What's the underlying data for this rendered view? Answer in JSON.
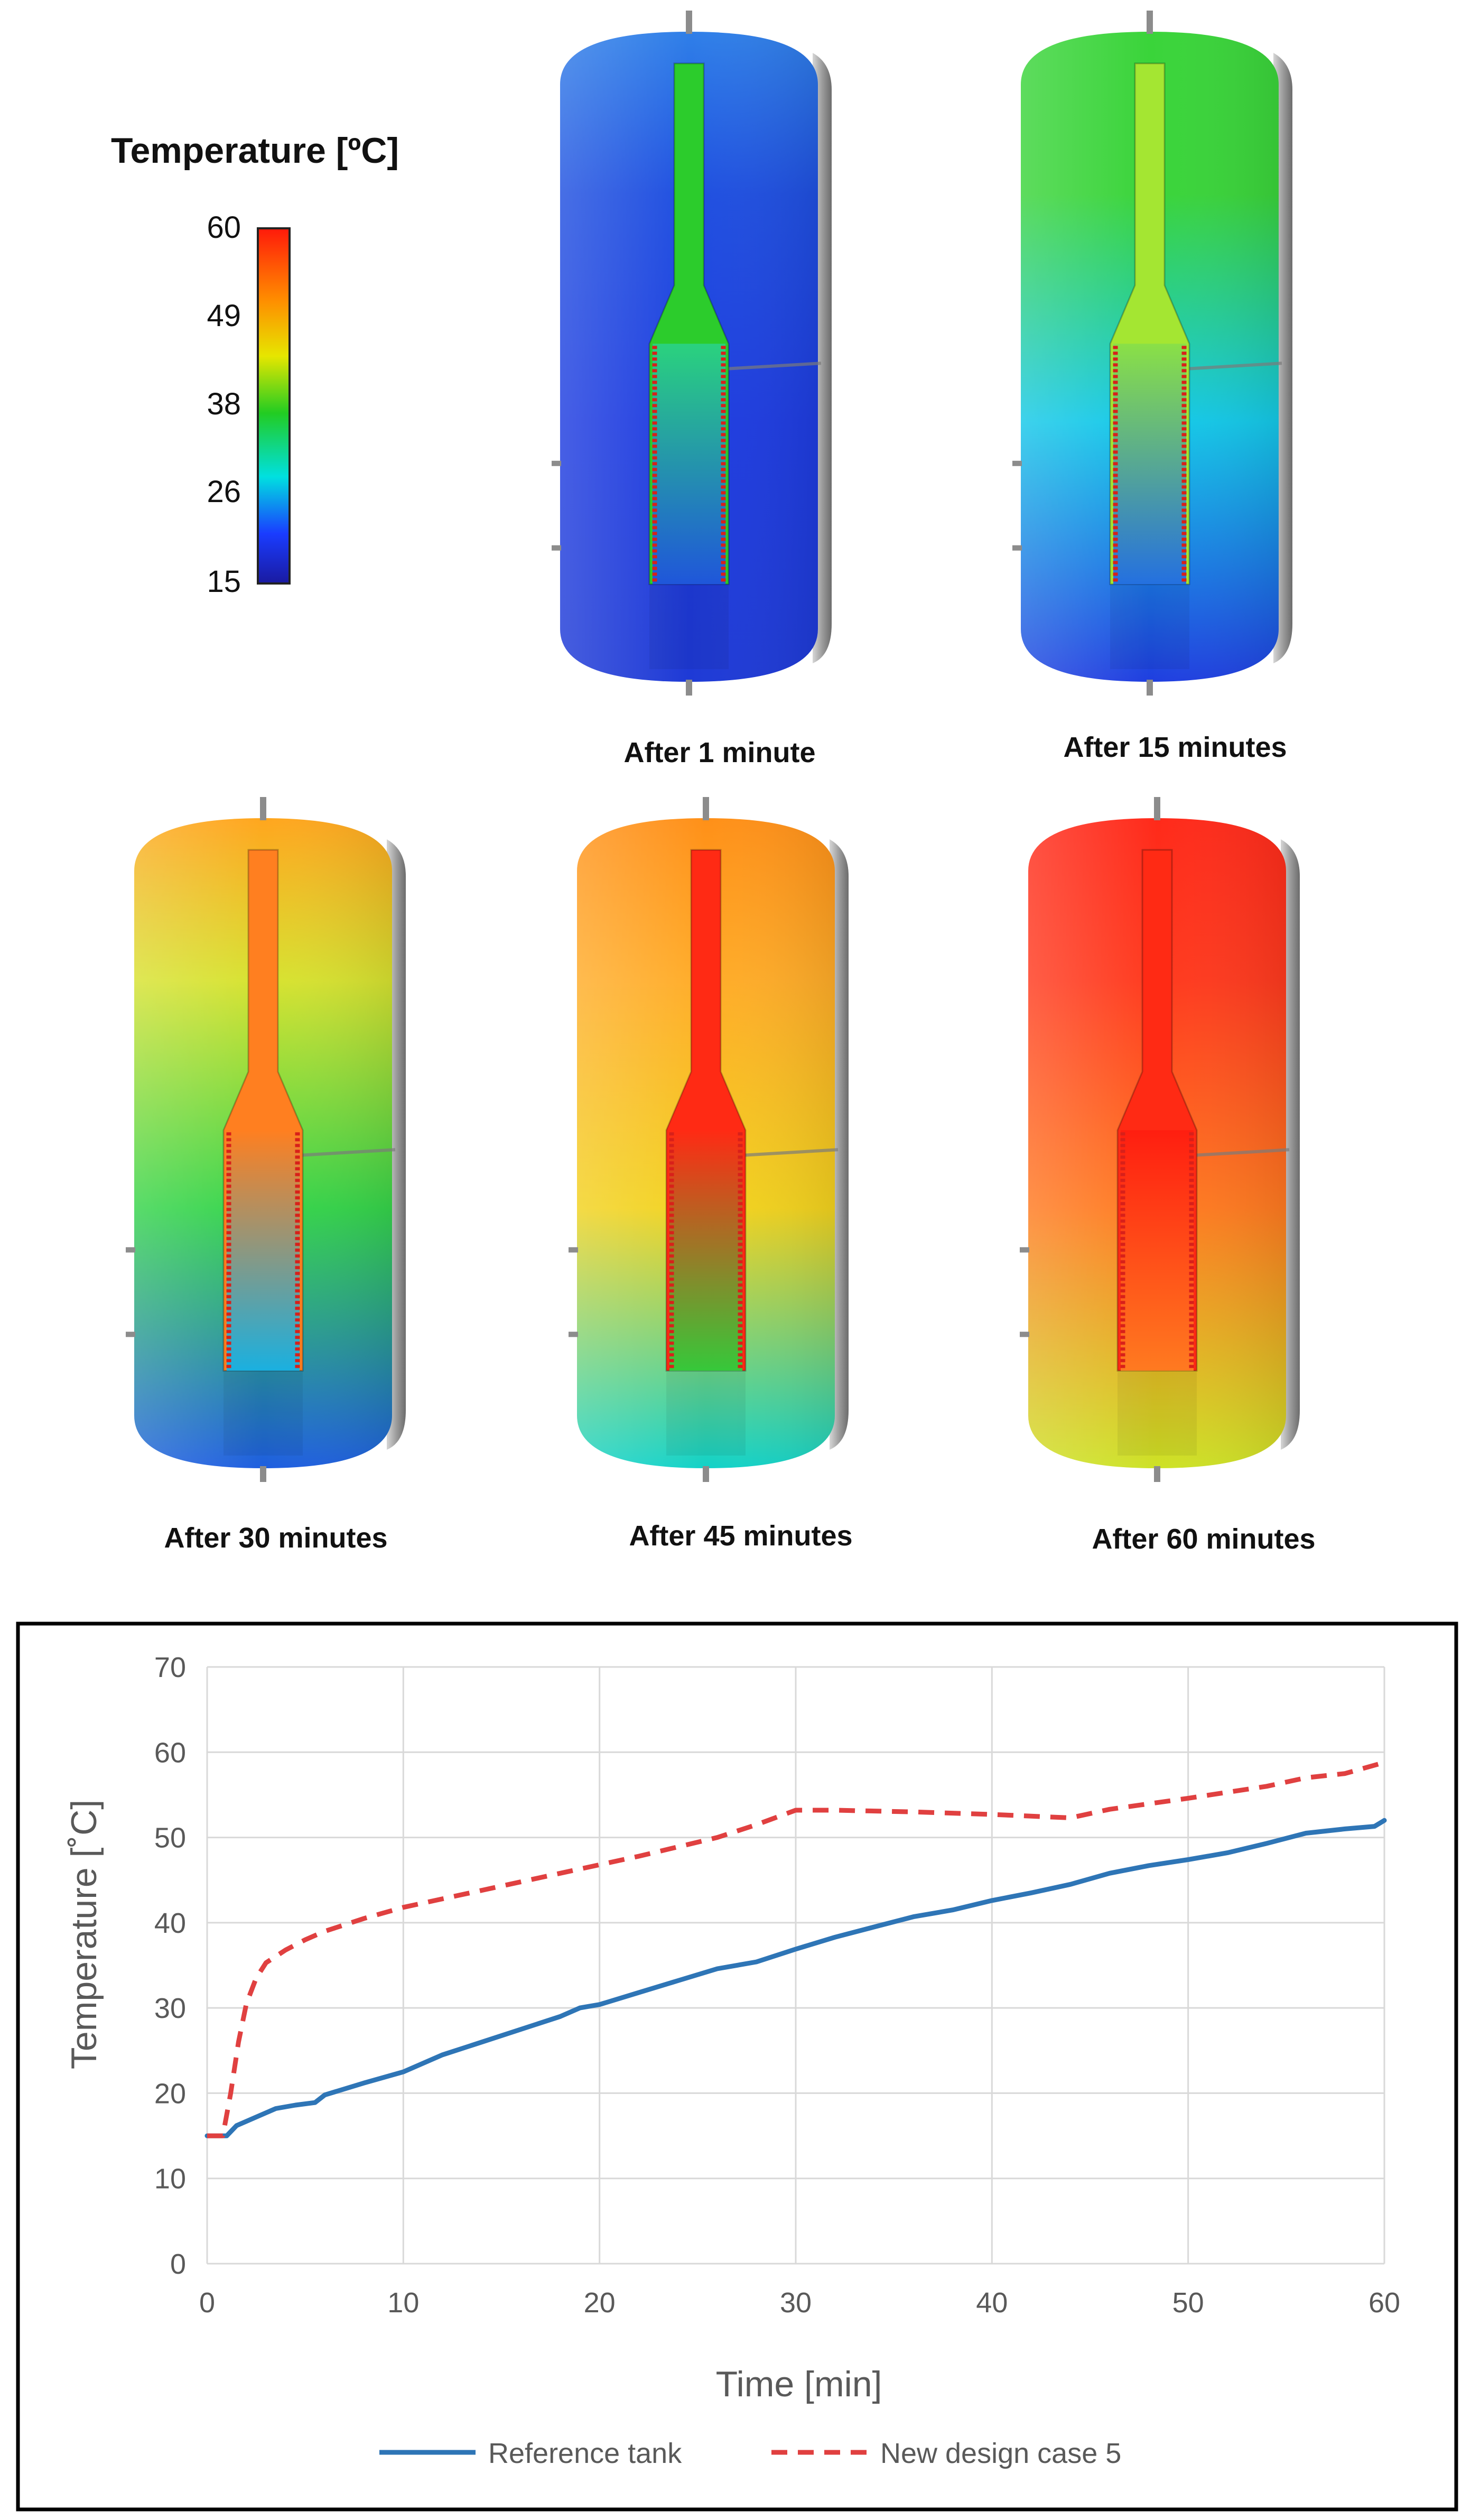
{
  "legend": {
    "title": "Temperature [ºC]",
    "ticks": [
      "60",
      "49",
      "38",
      "26",
      "15"
    ],
    "gradient_colors": [
      "#ff1a0a",
      "#ff8c00",
      "#e6e600",
      "#22cc22",
      "#00e0e0",
      "#1a3cff",
      "#1a1aa0"
    ]
  },
  "tanks": [
    {
      "label": "After 1 minute",
      "top": "#2f7fe8",
      "upper": "#1f4fe0",
      "mid": "#1e3ce0",
      "bottom": "#1e3ad6",
      "shaft": "#2ccc2c",
      "coilTop": "#2ad27e",
      "coilBottom": "#1f56da"
    },
    {
      "label": "After 15 minutes",
      "top": "#3ad43a",
      "upper": "#3ad43a",
      "mid": "#14c8e8",
      "bottom": "#1f3ee0",
      "shaft": "#a4e632",
      "coilTop": "#8ae046",
      "coilBottom": "#2470e0"
    },
    {
      "label": "After 30 minutes",
      "top": "#ffa61e",
      "upper": "#d7e230",
      "mid": "#35d44a",
      "bottom": "#1e5ee0",
      "shaft": "#ff7f20",
      "coilTop": "#ff7f20",
      "coilBottom": "#1ab0e0"
    },
    {
      "label": "After 45 minutes",
      "top": "#ff9018",
      "upper": "#ffac28",
      "mid": "#f2d21e",
      "bottom": "#12d2c8",
      "shaft": "#ff2a14",
      "coilTop": "#ff2a14",
      "coilBottom": "#36c83a"
    },
    {
      "label": "After 60 minutes",
      "top": "#ff2a1a",
      "upper": "#ff3a1e",
      "mid": "#ff7a20",
      "bottom": "#cde226",
      "shaft": "#ff2a14",
      "coilTop": "#ff1e10",
      "coilBottom": "#ff7a20"
    }
  ],
  "chart_data": {
    "type": "line",
    "title": "",
    "xlabel": "Time [min]",
    "ylabel": "Temperature [˚C]",
    "xlim": [
      0,
      60
    ],
    "ylim": [
      0,
      70
    ],
    "x_ticks": [
      "0",
      "10",
      "20",
      "30",
      "40",
      "50",
      "60"
    ],
    "y_ticks": [
      "0",
      "10",
      "20",
      "30",
      "40",
      "50",
      "60",
      "70"
    ],
    "grid": true,
    "legend_position": "bottom",
    "series": [
      {
        "name": "Reference tank",
        "color": "#2e75b6",
        "dash": "solid",
        "points": [
          [
            0,
            15
          ],
          [
            1,
            15
          ],
          [
            1.5,
            16.2
          ],
          [
            2.5,
            17.2
          ],
          [
            3.5,
            18.2
          ],
          [
            4.5,
            18.6
          ],
          [
            5.5,
            18.9
          ],
          [
            6,
            19.8
          ],
          [
            8,
            21.2
          ],
          [
            10,
            22.5
          ],
          [
            12,
            24.5
          ],
          [
            14,
            26
          ],
          [
            16,
            27.5
          ],
          [
            18,
            29
          ],
          [
            19,
            30
          ],
          [
            20,
            30.4
          ],
          [
            22,
            31.8
          ],
          [
            24,
            33.2
          ],
          [
            26,
            34.6
          ],
          [
            28,
            35.4
          ],
          [
            30,
            36.9
          ],
          [
            32,
            38.3
          ],
          [
            34,
            39.5
          ],
          [
            36,
            40.7
          ],
          [
            38,
            41.5
          ],
          [
            40,
            42.6
          ],
          [
            42,
            43.5
          ],
          [
            44,
            44.5
          ],
          [
            46,
            45.8
          ],
          [
            48,
            46.7
          ],
          [
            50,
            47.4
          ],
          [
            52,
            48.2
          ],
          [
            54,
            49.3
          ],
          [
            56,
            50.5
          ],
          [
            58,
            51
          ],
          [
            59.5,
            51.3
          ],
          [
            60,
            52
          ]
        ]
      },
      {
        "name": "New design case 5",
        "color": "#e04040",
        "dash": "dashed",
        "points": [
          [
            0,
            15
          ],
          [
            0.8,
            15
          ],
          [
            1.2,
            20
          ],
          [
            1.6,
            26
          ],
          [
            2,
            30.5
          ],
          [
            2.5,
            33.5
          ],
          [
            3,
            35.3
          ],
          [
            4,
            36.8
          ],
          [
            5,
            38
          ],
          [
            6,
            39
          ],
          [
            8,
            40.5
          ],
          [
            10,
            41.8
          ],
          [
            14,
            43.8
          ],
          [
            18,
            45.8
          ],
          [
            22,
            47.8
          ],
          [
            26,
            50
          ],
          [
            28,
            51.5
          ],
          [
            30,
            53.2
          ],
          [
            32,
            53.2
          ],
          [
            36,
            53
          ],
          [
            40,
            52.7
          ],
          [
            44,
            52.3
          ],
          [
            46,
            53.3
          ],
          [
            50,
            54.6
          ],
          [
            54,
            56
          ],
          [
            56,
            57
          ],
          [
            58,
            57.5
          ],
          [
            60,
            58.8
          ]
        ]
      }
    ]
  }
}
